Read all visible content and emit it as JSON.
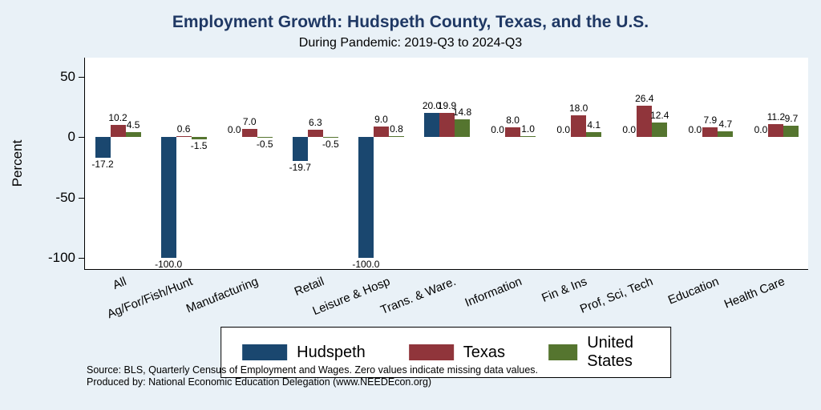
{
  "colors": {
    "background": "#e9f1f7",
    "plot_background": "#ffffff",
    "title_text": "#1f3864",
    "hudspeth": "#1a476f",
    "texas": "#90353b",
    "united_states": "#55752f"
  },
  "notes": {
    "line1": "Source: BLS, Quarterly Census of Employment and Wages. Zero values indicate missing data values.",
    "line2": "Produced by: National Economic Education Delegation (www.NEEDEcon.org)"
  },
  "chart_data": {
    "type": "bar",
    "title": "Employment Growth: Hudspeth County, Texas, and the U.S.",
    "subtitle": "During Pandemic: 2019-Q3 to 2024-Q3",
    "ylabel": "Percent",
    "xlabel": "",
    "categories": [
      "All",
      "Ag/For/Fish/Hunt",
      "Manufacturing",
      "Retail",
      "Leisure & Hosp",
      "Trans. & Ware.",
      "Information",
      "Fin & Ins",
      "Prof, Sci, Tech",
      "Education",
      "Health Care"
    ],
    "series": [
      {
        "name": "Hudspeth",
        "color": "#1a476f",
        "values": [
          -17.2,
          -100.0,
          0.0,
          -19.7,
          -100.0,
          20.0,
          0.0,
          0.0,
          0.0,
          0.0,
          0.0
        ]
      },
      {
        "name": "Texas",
        "color": "#90353b",
        "values": [
          10.2,
          0.6,
          7.0,
          6.3,
          9.0,
          19.9,
          8.0,
          18.0,
          26.4,
          7.9,
          11.2
        ]
      },
      {
        "name": "United States",
        "color": "#55752f",
        "values": [
          4.5,
          -1.5,
          -0.5,
          -0.5,
          0.8,
          14.8,
          1.0,
          4.1,
          12.4,
          4.7,
          9.7
        ]
      }
    ],
    "yticks": [
      50,
      0,
      -50,
      -100
    ],
    "ylim": [
      -110,
      66
    ],
    "grid": false,
    "legend_position": "bottom",
    "value_labels": "one-decimal"
  }
}
